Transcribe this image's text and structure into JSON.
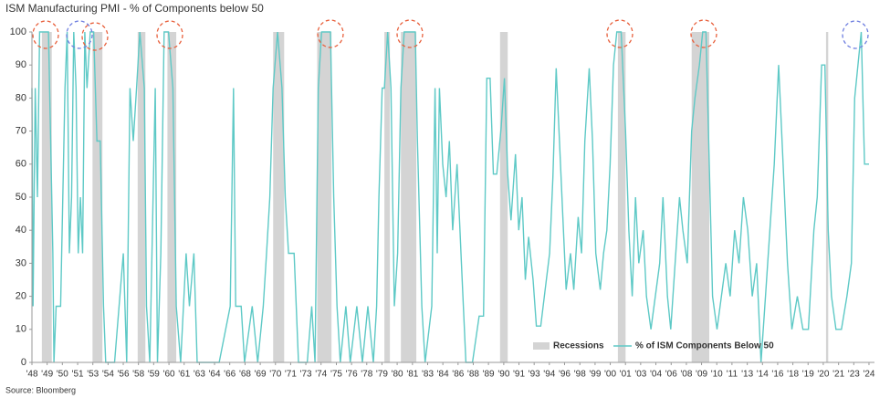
{
  "chart_data": {
    "type": "line",
    "title": "ISM Manufacturing PMI - % of Components below 50",
    "source": "Source: Bloomberg",
    "xlim": [
      1948,
      2024.5
    ],
    "ylim": [
      0,
      100
    ],
    "yticks": [
      0,
      10,
      20,
      30,
      40,
      50,
      60,
      70,
      80,
      90,
      100
    ],
    "xticks": [
      {
        "value": 1948,
        "label": "'48"
      },
      {
        "value": 1949.38,
        "label": "'49"
      },
      {
        "value": 1950.76,
        "label": "'50"
      },
      {
        "value": 1952.15,
        "label": "'51"
      },
      {
        "value": 1953.53,
        "label": "'53"
      },
      {
        "value": 1954.91,
        "label": "'54"
      },
      {
        "value": 1956.29,
        "label": "'56"
      },
      {
        "value": 1957.67,
        "label": "'58"
      },
      {
        "value": 1959.05,
        "label": "'59"
      },
      {
        "value": 1960.44,
        "label": "'60"
      },
      {
        "value": 1961.82,
        "label": "'61"
      },
      {
        "value": 1963.2,
        "label": "'63"
      },
      {
        "value": 1964.58,
        "label": "'64"
      },
      {
        "value": 1965.96,
        "label": "'66"
      },
      {
        "value": 1967.35,
        "label": "'68"
      },
      {
        "value": 1968.73,
        "label": "'69"
      },
      {
        "value": 1970.11,
        "label": "'70"
      },
      {
        "value": 1971.49,
        "label": "'71"
      },
      {
        "value": 1972.87,
        "label": "'73"
      },
      {
        "value": 1974.25,
        "label": "'74"
      },
      {
        "value": 1975.64,
        "label": "'75"
      },
      {
        "value": 1977.02,
        "label": "'76"
      },
      {
        "value": 1978.4,
        "label": "'78"
      },
      {
        "value": 1979.78,
        "label": "'79"
      },
      {
        "value": 1981.16,
        "label": "'80"
      },
      {
        "value": 1982.55,
        "label": "'81"
      },
      {
        "value": 1983.93,
        "label": "'83"
      },
      {
        "value": 1985.31,
        "label": "'84"
      },
      {
        "value": 1986.69,
        "label": "'86"
      },
      {
        "value": 1988.07,
        "label": "'88"
      },
      {
        "value": 1989.45,
        "label": "'89"
      },
      {
        "value": 1990.84,
        "label": "'90"
      },
      {
        "value": 1992.22,
        "label": "'91"
      },
      {
        "value": 1993.6,
        "label": "'93"
      },
      {
        "value": 1994.98,
        "label": "'94"
      },
      {
        "value": 1996.36,
        "label": "'96"
      },
      {
        "value": 1997.75,
        "label": "'98"
      },
      {
        "value": 1999.13,
        "label": "'99"
      },
      {
        "value": 2000.51,
        "label": "'00"
      },
      {
        "value": 2001.89,
        "label": "'01"
      },
      {
        "value": 2003.27,
        "label": "'03"
      },
      {
        "value": 2004.65,
        "label": "'04"
      },
      {
        "value": 2006.04,
        "label": "'06"
      },
      {
        "value": 2007.42,
        "label": "'08"
      },
      {
        "value": 2008.8,
        "label": "'09"
      },
      {
        "value": 2010.18,
        "label": "'10"
      },
      {
        "value": 2011.56,
        "label": "'11"
      },
      {
        "value": 2012.95,
        "label": "'13"
      },
      {
        "value": 2014.33,
        "label": "'14"
      },
      {
        "value": 2015.71,
        "label": "'16"
      },
      {
        "value": 2017.09,
        "label": "'18"
      },
      {
        "value": 2018.47,
        "label": "'19"
      },
      {
        "value": 2019.85,
        "label": "'20"
      },
      {
        "value": 2021.24,
        "label": "'21"
      },
      {
        "value": 2022.62,
        "label": "'23"
      },
      {
        "value": 2024,
        "label": "'24"
      }
    ],
    "recessions": {
      "name": "Recessions",
      "color": "#d4d4d4",
      "periods": [
        [
          1948.9,
          1949.8
        ],
        [
          1953.5,
          1954.4
        ],
        [
          1957.6,
          1958.3
        ],
        [
          1960.3,
          1961.1
        ],
        [
          1969.9,
          1970.9
        ],
        [
          1973.9,
          1975.2
        ],
        [
          1980.0,
          1980.5
        ],
        [
          1981.5,
          1982.9
        ],
        [
          1990.5,
          1991.2
        ],
        [
          2001.2,
          2001.9
        ],
        [
          2007.9,
          2009.5
        ],
        [
          2020.1,
          2020.3
        ]
      ]
    },
    "series": [
      {
        "name": "% of ISM Components Below 50",
        "color": "#5ec9c6",
        "x": [
          1948.0,
          1948.1,
          1948.3,
          1948.5,
          1948.7,
          1949.0,
          1949.5,
          1949.7,
          1949.9,
          1950.0,
          1950.2,
          1950.6,
          1951.0,
          1951.2,
          1951.4,
          1951.6,
          1951.8,
          1952.0,
          1952.2,
          1952.4,
          1952.6,
          1952.8,
          1953.0,
          1953.3,
          1953.6,
          1953.9,
          1954.2,
          1954.5,
          1954.7,
          1955.5,
          1956.3,
          1956.6,
          1956.9,
          1957.2,
          1957.5,
          1957.8,
          1958.2,
          1958.4,
          1958.7,
          1959.2,
          1959.4,
          1959.7,
          1960.0,
          1960.4,
          1960.8,
          1961.1,
          1961.5,
          1962.0,
          1962.3,
          1962.7,
          1963.0,
          1965.0,
          1966.0,
          1966.3,
          1966.5,
          1967.0,
          1967.3,
          1968.0,
          1968.5,
          1969.0,
          1969.3,
          1969.6,
          1969.9,
          1970.3,
          1970.7,
          1971.0,
          1971.3,
          1971.8,
          1972.2,
          1973.0,
          1973.4,
          1973.7,
          1974.0,
          1974.3,
          1974.7,
          1975.1,
          1975.4,
          1975.7,
          1976.0,
          1976.5,
          1976.9,
          1977.5,
          1978.0,
          1978.5,
          1979.0,
          1979.3,
          1979.5,
          1979.8,
          1980.0,
          1980.3,
          1980.6,
          1980.9,
          1981.2,
          1981.5,
          1981.8,
          1982.3,
          1982.8,
          1983.0,
          1983.4,
          1983.7,
          1984.3,
          1984.6,
          1984.8,
          1985.0,
          1985.3,
          1985.6,
          1985.9,
          1986.2,
          1986.6,
          1987.0,
          1987.4,
          1988.0,
          1988.6,
          1989.0,
          1989.3,
          1989.6,
          1989.9,
          1990.2,
          1990.6,
          1990.9,
          1991.2,
          1991.5,
          1991.9,
          1992.2,
          1992.5,
          1992.8,
          1993.1,
          1993.5,
          1993.8,
          1994.2,
          1994.6,
          1995.0,
          1995.3,
          1995.6,
          1995.9,
          1996.2,
          1996.5,
          1996.9,
          1997.2,
          1997.6,
          1997.9,
          1998.2,
          1998.6,
          1998.9,
          1999.2,
          1999.6,
          1999.9,
          2000.2,
          2000.5,
          2000.8,
          2001.1,
          2001.5,
          2001.9,
          2002.2,
          2002.5,
          2002.8,
          2003.1,
          2003.5,
          2003.8,
          2004.2,
          2004.6,
          2005.0,
          2005.3,
          2005.7,
          2006.0,
          2006.4,
          2006.8,
          2007.1,
          2007.5,
          2007.9,
          2008.2,
          2008.6,
          2008.9,
          2009.2,
          2009.5,
          2009.8,
          2010.2,
          2010.6,
          2011.0,
          2011.4,
          2011.8,
          2012.2,
          2012.6,
          2013.0,
          2013.4,
          2013.8,
          2014.2,
          2014.6,
          2015.0,
          2015.4,
          2015.8,
          2016.2,
          2016.6,
          2017.0,
          2017.5,
          2018.0,
          2018.5,
          2019.0,
          2019.3,
          2019.7,
          2020.0,
          2020.3,
          2020.6,
          2021.0,
          2021.5,
          2022.0,
          2022.4,
          2022.7,
          2023.0,
          2023.3,
          2023.6,
          2024.0
        ],
        "values": [
          83,
          17,
          83,
          50,
          100,
          100,
          100,
          67,
          33,
          0,
          17,
          17,
          83,
          100,
          33,
          50,
          100,
          83,
          33,
          50,
          33,
          100,
          83,
          100,
          100,
          67,
          67,
          17,
          0,
          0,
          33,
          0,
          83,
          67,
          83,
          100,
          83,
          17,
          0,
          83,
          0,
          33,
          100,
          100,
          83,
          17,
          0,
          33,
          17,
          33,
          0,
          0,
          17,
          83,
          17,
          17,
          0,
          17,
          0,
          17,
          33,
          50,
          83,
          100,
          83,
          50,
          33,
          33,
          0,
          0,
          17,
          0,
          83,
          100,
          100,
          100,
          50,
          17,
          0,
          17,
          0,
          17,
          0,
          17,
          0,
          17,
          50,
          83,
          83,
          100,
          83,
          17,
          33,
          83,
          100,
          100,
          100,
          67,
          17,
          0,
          17,
          83,
          33,
          83,
          60,
          50,
          67,
          40,
          60,
          30,
          0,
          0,
          14,
          14,
          86,
          86,
          57,
          57,
          71,
          86,
          57,
          43,
          63,
          40,
          50,
          25,
          38,
          25,
          11,
          11,
          22,
          33,
          56,
          89,
          67,
          44,
          22,
          33,
          22,
          44,
          33,
          67,
          89,
          67,
          33,
          22,
          33,
          40,
          60,
          90,
          100,
          100,
          70,
          40,
          20,
          50,
          30,
          40,
          20,
          10,
          20,
          30,
          50,
          20,
          10,
          30,
          50,
          40,
          30,
          70,
          80,
          90,
          100,
          100,
          60,
          20,
          10,
          20,
          30,
          20,
          40,
          30,
          50,
          40,
          20,
          30,
          0,
          20,
          40,
          60,
          90,
          60,
          30,
          10,
          20,
          10,
          10,
          40,
          50,
          90,
          90,
          40,
          20,
          10,
          10,
          20,
          30,
          80,
          90,
          100,
          60,
          60
        ]
      }
    ]
  }
}
